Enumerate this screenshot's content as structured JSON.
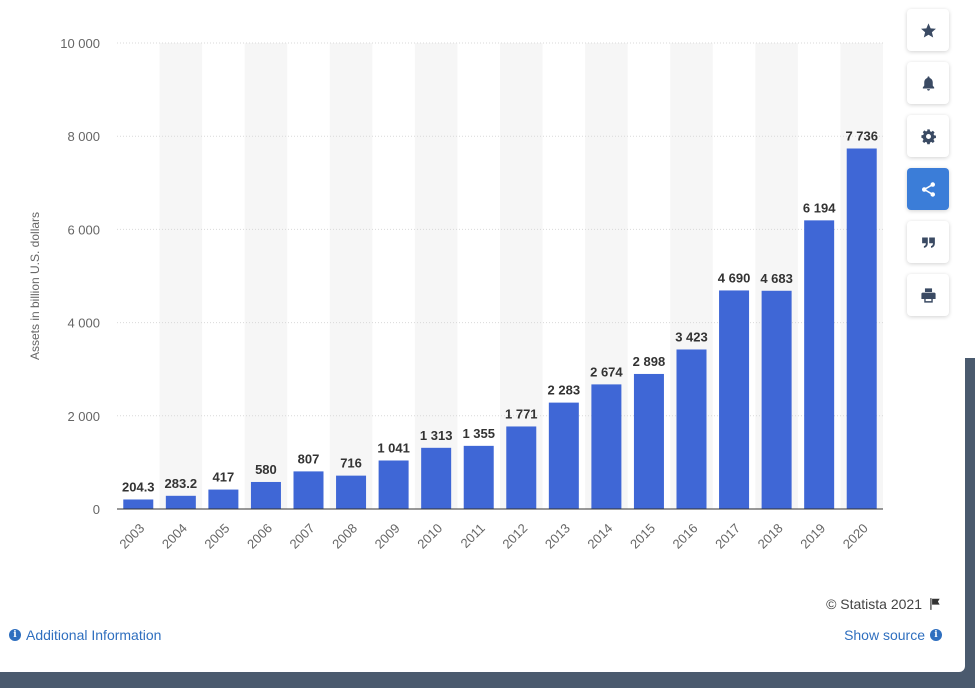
{
  "chart_data": {
    "type": "bar",
    "categories": [
      "2003",
      "2004",
      "2005",
      "2006",
      "2007",
      "2008",
      "2009",
      "2010",
      "2011",
      "2012",
      "2013",
      "2014",
      "2015",
      "2016",
      "2017",
      "2018",
      "2019",
      "2020"
    ],
    "values": [
      204.3,
      283.2,
      417,
      580,
      807,
      716,
      1041,
      1313,
      1355,
      1771,
      2283,
      2674,
      2898,
      3423,
      4690,
      4683,
      6194,
      7736
    ],
    "value_labels": [
      "204.3",
      "283.2",
      "417",
      "580",
      "807",
      "716",
      "1 041",
      "1 313",
      "1 355",
      "1 771",
      "2 283",
      "2 674",
      "2 898",
      "3 423",
      "4 690",
      "4 683",
      "6 194",
      "7 736"
    ],
    "ylabel": "Assets in billion U.S. dollars",
    "xlabel": "",
    "ylim": [
      0,
      10000
    ],
    "yticks": [
      0,
      2000,
      4000,
      6000,
      8000,
      10000
    ],
    "ytick_labels": [
      "0",
      "2 000",
      "4 000",
      "6 000",
      "8 000",
      "10 000"
    ],
    "bar_color": "#3f67d6",
    "grid": true,
    "legend": "none"
  },
  "toolbar": {
    "buttons": [
      {
        "name": "favorite-button",
        "icon": "star-icon"
      },
      {
        "name": "notification-button",
        "icon": "bell-icon"
      },
      {
        "name": "settings-button",
        "icon": "gear-icon"
      },
      {
        "name": "share-button",
        "icon": "share-icon",
        "active": true
      },
      {
        "name": "cite-button",
        "icon": "quote-icon"
      },
      {
        "name": "print-button",
        "icon": "printer-icon"
      }
    ]
  },
  "footer": {
    "credit": "© Statista 2021",
    "additional_info": "Additional Information",
    "show_source": "Show source"
  }
}
